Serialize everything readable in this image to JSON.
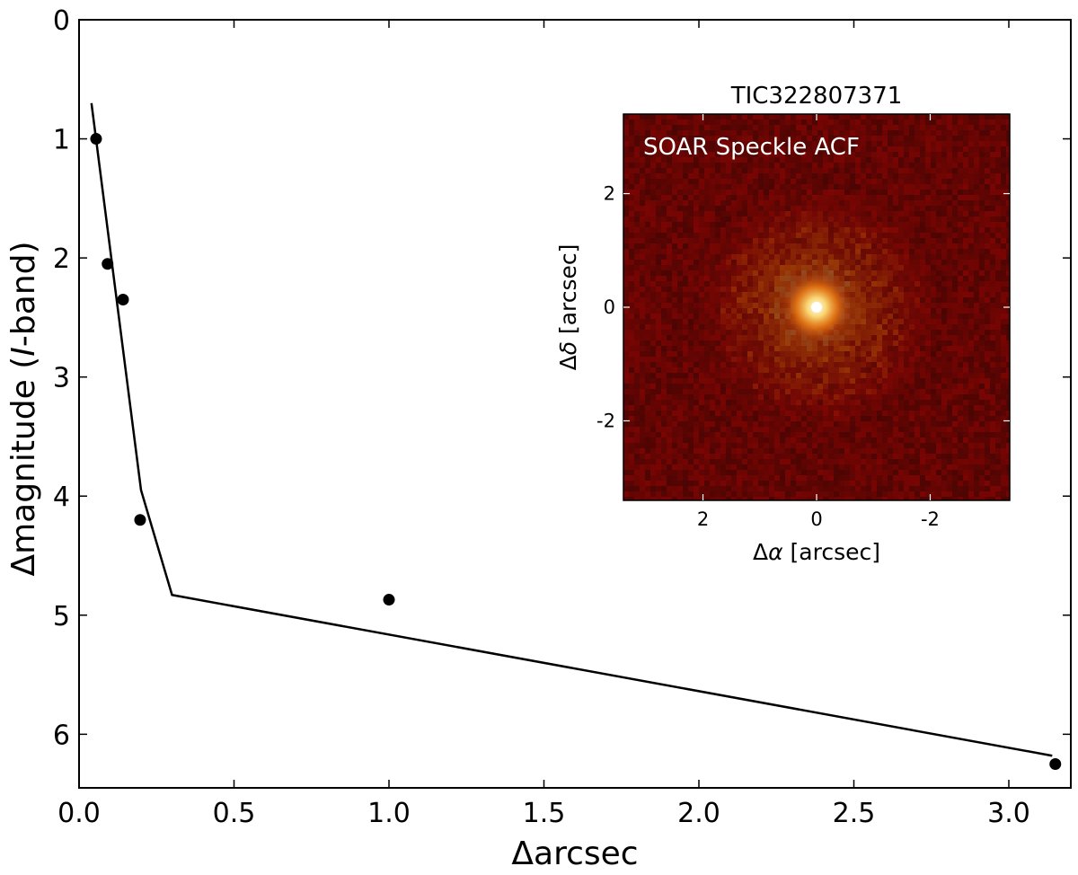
{
  "chart_data": [
    {
      "type": "line",
      "xlabel": "Δarcsec",
      "ylabel_prefix": "Δmagnitude (",
      "ylabel_italic": "I",
      "ylabel_suffix": "-band)",
      "xlim": [
        0.0,
        3.2
      ],
      "ylim": [
        0,
        6.45
      ],
      "y_inverted": true,
      "grid": false,
      "xticks": [
        0.0,
        0.5,
        1.0,
        1.5,
        2.0,
        2.5,
        3.0
      ],
      "xtick_labels": [
        "0.0",
        "0.5",
        "1.0",
        "1.5",
        "2.0",
        "2.5",
        "3.0"
      ],
      "yticks": [
        0,
        1,
        2,
        3,
        4,
        5,
        6
      ],
      "ytick_labels": [
        "0",
        "1",
        "2",
        "3",
        "4",
        "5",
        "6"
      ],
      "series": [
        {
          "style": "line",
          "color": "#000000",
          "x": [
            0.04,
            0.2,
            0.3,
            3.14
          ],
          "y": [
            0.7,
            3.95,
            4.83,
            6.18
          ]
        },
        {
          "style": "points",
          "color": "#000000",
          "x": [
            0.055,
            0.092,
            0.142,
            0.197,
            1.0,
            3.15
          ],
          "y": [
            1.0,
            2.05,
            2.35,
            4.2,
            4.87,
            6.25
          ]
        }
      ]
    },
    {
      "type": "heatmap",
      "title": "TIC322807371",
      "annotation": "SOAR Speckle ACF",
      "xlabel_prefix": "Δ",
      "xlabel_italic": "α",
      "xlabel_suffix": " [arcsec]",
      "ylabel_prefix": "Δ",
      "ylabel_italic": "δ",
      "ylabel_suffix": " [arcsec]",
      "xlim": [
        3.4,
        -3.4
      ],
      "ylim": [
        -3.4,
        3.4
      ],
      "xticks": [
        2,
        0,
        -2
      ],
      "xtick_labels": [
        "2",
        "0",
        "-2"
      ],
      "yticks": [
        2,
        0,
        -2
      ],
      "ytick_labels": [
        "2",
        "0",
        "-2"
      ],
      "colormap": "afmhot",
      "background_color": "#1e0503",
      "peak_color": "#ffffff",
      "peak_position": [
        0,
        0
      ]
    }
  ]
}
